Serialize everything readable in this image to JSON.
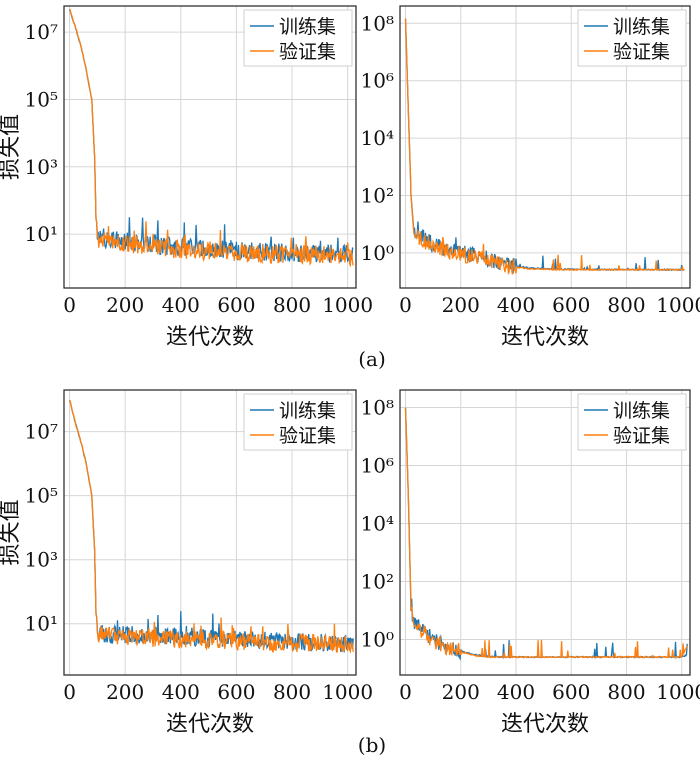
{
  "captions": [
    "(a)",
    "(b)"
  ],
  "colors": {
    "train": "#1f77b4",
    "val": "#ff7f0e"
  },
  "chart_data": [
    {
      "type": "line",
      "panel": "a-left",
      "ylog": true,
      "xlabel": "迭代次数",
      "ylabel": "损失值",
      "xlim": [
        -20,
        1030
      ],
      "ylim": [
        0.25,
        60000000
      ],
      "xticks": [
        0,
        200,
        400,
        600,
        800,
        1000
      ],
      "yticks": [
        10,
        1000,
        100000,
        10000000
      ],
      "grid": true,
      "legend_position": "top-right",
      "series": [
        {
          "name": "训练集",
          "x": [
            0,
            20,
            40,
            60,
            80,
            90,
            95,
            100,
            150,
            200,
            300,
            400,
            500,
            600,
            700,
            800,
            900,
            1000,
            1020
          ],
          "y": [
            50000000,
            15000000,
            4000000,
            800000,
            100000,
            2000,
            30,
            8,
            6.5,
            6,
            5,
            4,
            3.5,
            3.2,
            3,
            2.8,
            2.6,
            2.4,
            2.3
          ]
        },
        {
          "name": "验证集",
          "x": [
            0,
            20,
            40,
            60,
            80,
            90,
            95,
            100,
            150,
            200,
            300,
            400,
            500,
            600,
            700,
            800,
            900,
            1000,
            1020
          ],
          "y": [
            50000000,
            15000000,
            4000000,
            800000,
            100000,
            2000,
            30,
            7,
            5.5,
            5,
            4.2,
            3.5,
            3,
            2.8,
            2.6,
            2.5,
            2.4,
            2.2,
            2.2
          ]
        }
      ]
    },
    {
      "type": "line",
      "panel": "a-right",
      "ylog": true,
      "xlabel": "迭代次数",
      "ylabel": "",
      "xlim": [
        -20,
        1030
      ],
      "ylim": [
        0.06,
        400000000
      ],
      "xticks": [
        0,
        200,
        400,
        600,
        800,
        1000
      ],
      "yticks": [
        1,
        100,
        10000,
        1000000,
        100000000
      ],
      "grid": true,
      "legend_position": "top-right",
      "series": [
        {
          "name": "训练集",
          "x": [
            0,
            10,
            20,
            30,
            50,
            100,
            200,
            300,
            400,
            450,
            500,
            600,
            800,
            1000,
            1010
          ],
          "y": [
            150000000,
            100000,
            100,
            6,
            4,
            2,
            1,
            0.6,
            0.35,
            0.3,
            0.28,
            0.27,
            0.26,
            0.26,
            0.26
          ]
        },
        {
          "name": "验证集",
          "x": [
            0,
            10,
            20,
            30,
            50,
            100,
            200,
            300,
            400,
            450,
            500,
            600,
            800,
            1000,
            1010
          ],
          "y": [
            150000000,
            100000,
            100,
            5,
            3,
            1.8,
            0.9,
            0.55,
            0.32,
            0.28,
            0.27,
            0.26,
            0.26,
            0.26,
            0.26
          ]
        }
      ]
    },
    {
      "type": "line",
      "panel": "b-left",
      "ylog": true,
      "xlabel": "迭代次数",
      "ylabel": "损失值",
      "xlim": [
        -20,
        1030
      ],
      "ylim": [
        0.25,
        200000000
      ],
      "xticks": [
        0,
        200,
        400,
        600,
        800,
        1000
      ],
      "yticks": [
        10,
        1000,
        100000,
        10000000
      ],
      "grid": true,
      "legend_position": "top-right",
      "series": [
        {
          "name": "训练集",
          "x": [
            0,
            20,
            40,
            60,
            80,
            90,
            95,
            100,
            150,
            200,
            300,
            400,
            500,
            600,
            700,
            800,
            900,
            1000,
            1020
          ],
          "y": [
            100000000,
            20000000,
            5000000,
            1000000,
            100000,
            2000,
            20,
            5,
            4.5,
            4.5,
            4.2,
            4,
            3.6,
            3.3,
            3,
            2.8,
            2.6,
            2.4,
            2.3
          ]
        },
        {
          "name": "验证集",
          "x": [
            0,
            20,
            40,
            60,
            80,
            90,
            95,
            100,
            150,
            200,
            300,
            400,
            500,
            600,
            700,
            800,
            900,
            1000,
            1020
          ],
          "y": [
            100000000,
            20000000,
            5000000,
            1000000,
            100000,
            2000,
            20,
            5,
            4.5,
            4,
            3.6,
            3.2,
            3,
            2.8,
            2.6,
            2.5,
            2.4,
            2.2,
            2.2
          ]
        }
      ]
    },
    {
      "type": "line",
      "panel": "b-right",
      "ylog": true,
      "xlabel": "迭代次数",
      "ylabel": "",
      "xlim": [
        -20,
        1030
      ],
      "ylim": [
        0.06,
        400000000
      ],
      "xticks": [
        0,
        200,
        400,
        600,
        800,
        1000
      ],
      "yticks": [
        1,
        100,
        10000,
        1000000,
        100000000
      ],
      "grid": true,
      "legend_position": "top-right",
      "series": [
        {
          "name": "训练集",
          "x": [
            0,
            10,
            20,
            30,
            50,
            100,
            150,
            200,
            250,
            300,
            350,
            400,
            600,
            800,
            1000,
            1020
          ],
          "y": [
            100000000,
            100000,
            10,
            4,
            2.5,
            1,
            0.6,
            0.4,
            0.3,
            0.26,
            0.25,
            0.25,
            0.25,
            0.25,
            0.25,
            0.3
          ]
        },
        {
          "name": "验证集",
          "x": [
            0,
            10,
            20,
            30,
            50,
            100,
            150,
            200,
            250,
            300,
            350,
            400,
            600,
            800,
            1000,
            1020
          ],
          "y": [
            100000000,
            100000,
            10,
            4,
            2.2,
            0.9,
            0.55,
            0.38,
            0.28,
            0.25,
            0.25,
            0.25,
            0.25,
            0.25,
            0.25,
            0.6
          ]
        }
      ]
    }
  ]
}
